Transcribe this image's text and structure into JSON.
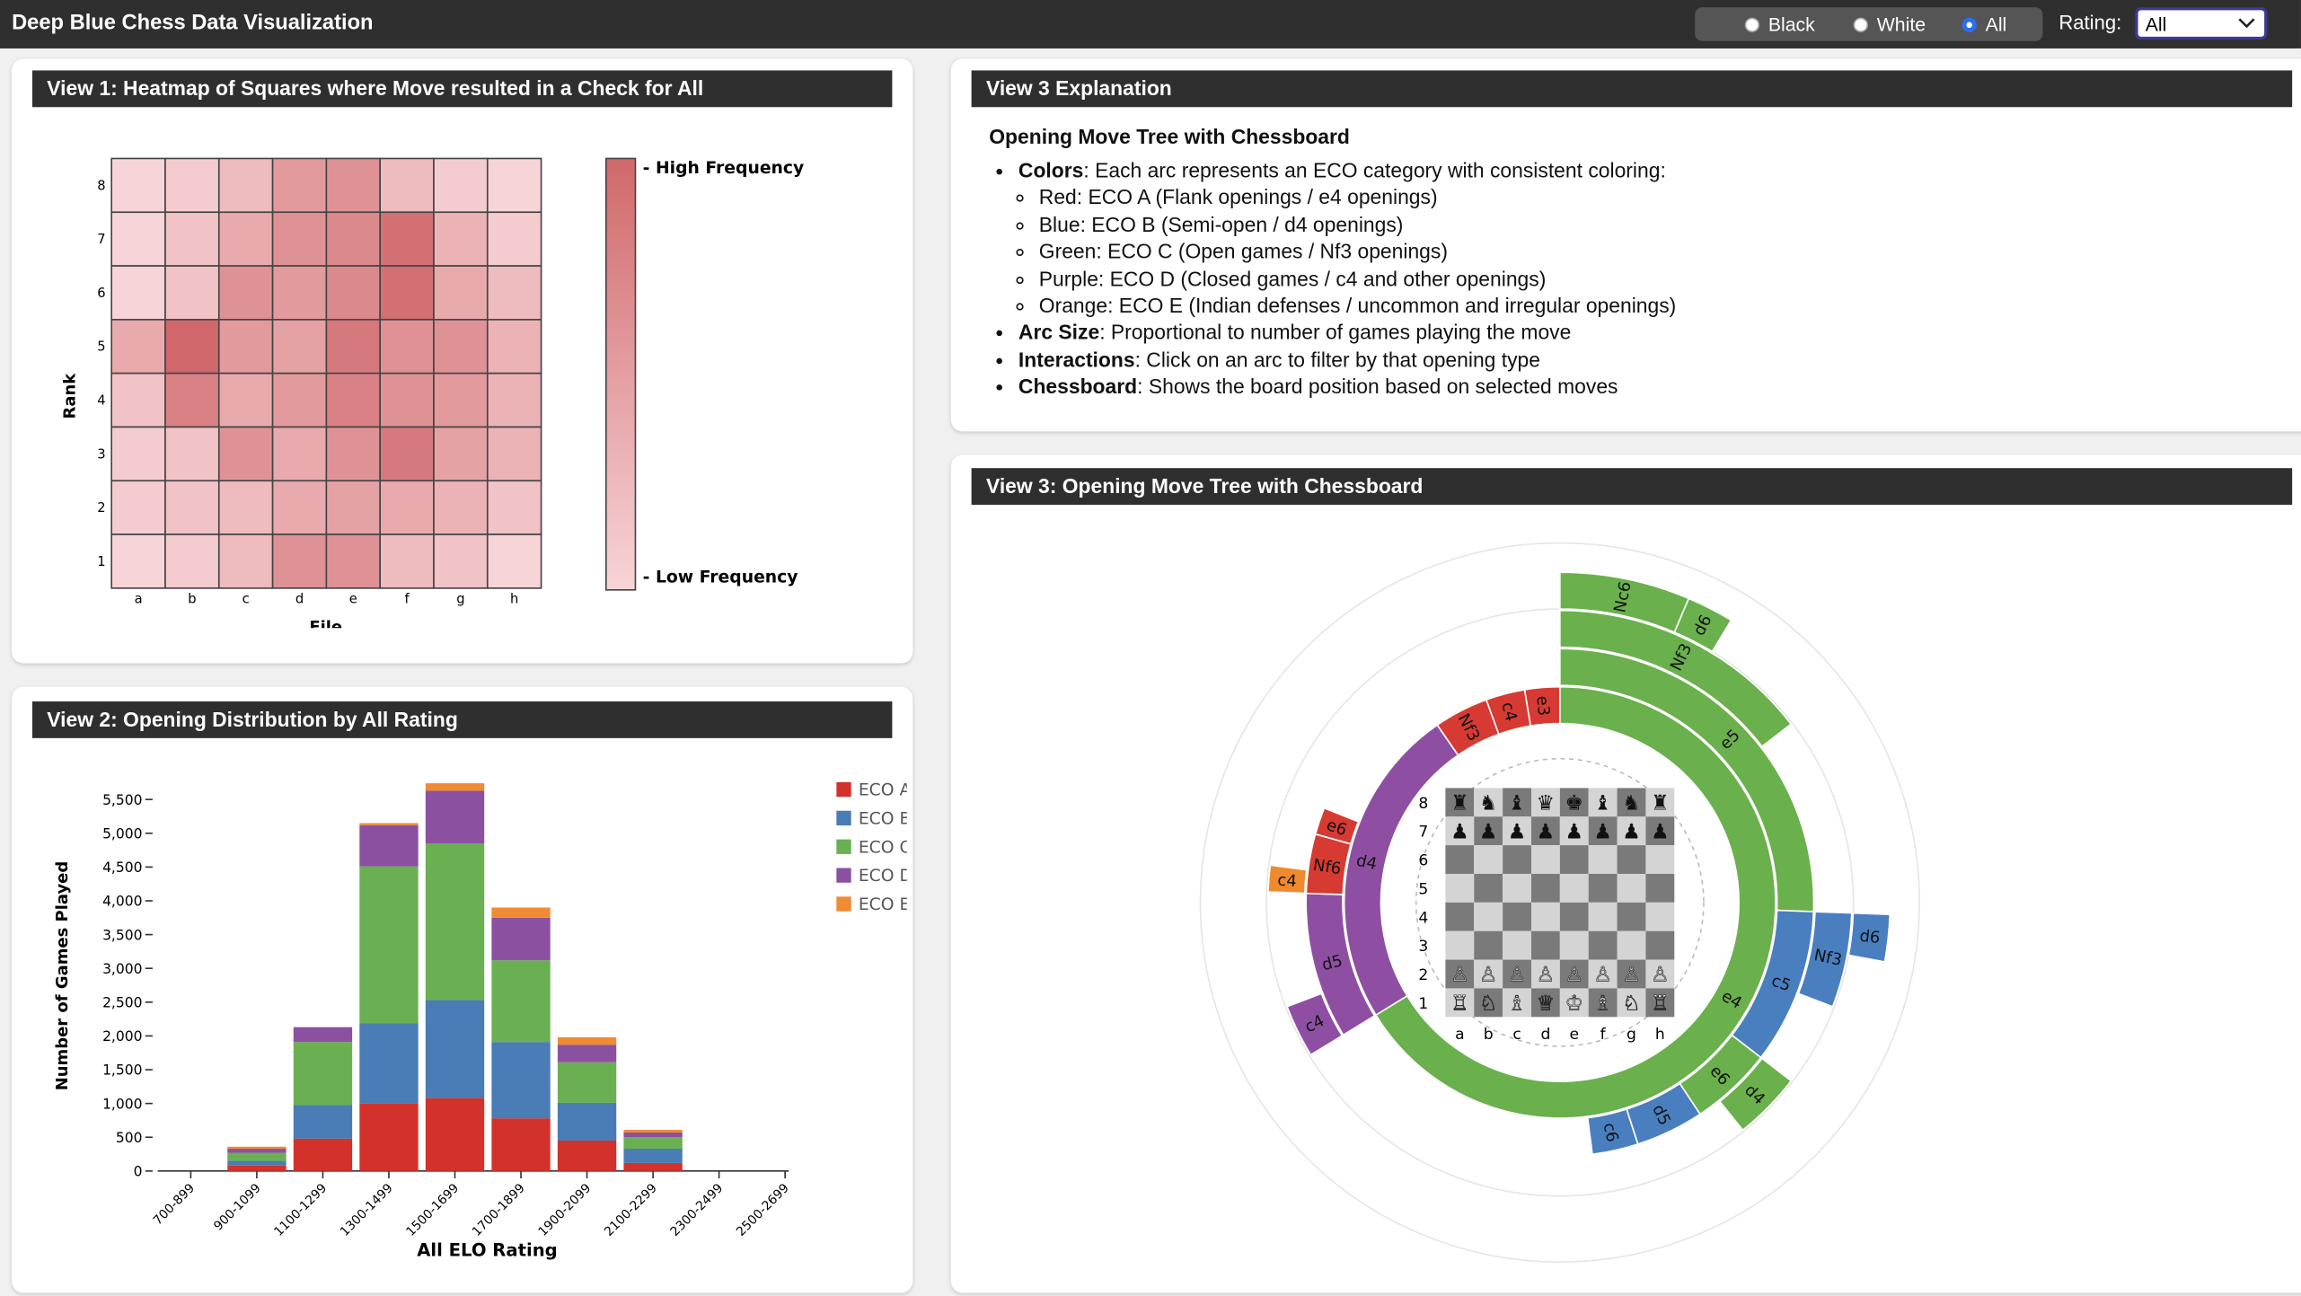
{
  "header": {
    "title": "Deep Blue Chess Data Visualization",
    "options": [
      "Black",
      "White",
      "All"
    ],
    "rating_label": "Rating:",
    "rating_value": "All"
  },
  "explanation": {
    "title": "View 3 Explanation",
    "heading": "Opening Move Tree with Chessboard",
    "items": [
      {
        "term": "Colors",
        "text": ": Each arc represents an ECO category with consistent coloring:",
        "subitems": [
          "Red: ECO A (Flank openings / e4 openings)",
          "Blue: ECO B (Semi-open / d4 openings)",
          "Green: ECO C (Open games / Nf3 openings)",
          "Purple: ECO D (Closed games / c4 and other openings)",
          "Orange: ECO E (Indian defenses / uncommon and irregular openings)"
        ]
      },
      {
        "term": "Arc Size",
        "text": ": Proportional to number of games playing the move"
      },
      {
        "term": "Interactions",
        "text": ": Click on an arc to filter by that opening type"
      },
      {
        "term": "Chessboard",
        "text": ": Shows the board position based on selected moves"
      }
    ]
  },
  "chart_data": [
    {
      "type": "heatmap",
      "title": "View 1: Heatmap of Squares where Move resulted in a Check for All",
      "x_label": "File",
      "y_label": "Rank",
      "x_categories": [
        "a",
        "b",
        "c",
        "d",
        "e",
        "f",
        "g",
        "h"
      ],
      "y_categories": [
        "8",
        "7",
        "6",
        "5",
        "4",
        "3",
        "2",
        "1"
      ],
      "values": [
        [
          0.2,
          0.25,
          0.35,
          0.55,
          0.6,
          0.35,
          0.25,
          0.2
        ],
        [
          0.2,
          0.3,
          0.45,
          0.6,
          0.65,
          0.8,
          0.4,
          0.25
        ],
        [
          0.2,
          0.3,
          0.6,
          0.55,
          0.65,
          0.8,
          0.45,
          0.35
        ],
        [
          0.45,
          0.85,
          0.55,
          0.5,
          0.75,
          0.6,
          0.6,
          0.4
        ],
        [
          0.3,
          0.7,
          0.45,
          0.55,
          0.7,
          0.6,
          0.55,
          0.4
        ],
        [
          0.25,
          0.3,
          0.6,
          0.45,
          0.6,
          0.75,
          0.5,
          0.4
        ],
        [
          0.25,
          0.3,
          0.35,
          0.45,
          0.5,
          0.45,
          0.4,
          0.3
        ],
        [
          0.2,
          0.25,
          0.35,
          0.6,
          0.6,
          0.35,
          0.3,
          0.2
        ]
      ],
      "colorscale": [
        "#f7d4d7",
        "#d0686b"
      ],
      "colorbar_labels": {
        "high": "- High Frequency",
        "low": "- Low Frequency"
      }
    },
    {
      "type": "bar",
      "stacked": true,
      "title": "View 2: Opening Distribution by All Rating",
      "x_label": "All ELO Rating",
      "y_label": "Number of Games Played",
      "categories": [
        "700-899",
        "900-1099",
        "1100-1299",
        "1300-1499",
        "1500-1699",
        "1700-1899",
        "1900-2099",
        "2100-2299",
        "2300-2499",
        "2500-2699"
      ],
      "series": [
        {
          "name": "ECO A",
          "color": "#d3312b",
          "values": [
            0,
            80,
            480,
            1000,
            1080,
            780,
            450,
            120,
            0,
            0
          ]
        },
        {
          "name": "ECO B",
          "color": "#4a7cb5",
          "values": [
            0,
            70,
            500,
            1190,
            1450,
            1130,
            560,
            210,
            0,
            0
          ]
        },
        {
          "name": "ECO C",
          "color": "#6aaf52",
          "values": [
            0,
            120,
            930,
            2320,
            2320,
            1210,
            600,
            170,
            0,
            0
          ]
        },
        {
          "name": "ECO D",
          "color": "#8b51a0",
          "values": [
            0,
            60,
            220,
            610,
            780,
            630,
            260,
            70,
            0,
            0
          ]
        },
        {
          "name": "ECO E",
          "color": "#f08a33",
          "values": [
            0,
            30,
            0,
            30,
            110,
            150,
            110,
            40,
            0,
            0
          ]
        }
      ],
      "ylim": [
        0,
        5800
      ],
      "yticks": [
        0,
        500,
        {
          "value": 1000,
          "label": "1,000"
        },
        {
          "value": 1500,
          "label": "1,500"
        },
        {
          "value": 2000,
          "label": "2,000"
        },
        {
          "value": 2500,
          "label": "2,500"
        },
        {
          "value": 3000,
          "label": "3,000"
        },
        {
          "value": 3500,
          "label": "3,500"
        },
        {
          "value": 4000,
          "label": "4,000"
        },
        {
          "value": 4500,
          "label": "4,500"
        },
        {
          "value": 5000,
          "label": "5,000"
        },
        {
          "value": 5500,
          "label": "5,500"
        }
      ]
    },
    {
      "type": "sunburst",
      "title": "View 3: Opening Move Tree with Chessboard",
      "nodes": [
        {
          "label": "e4",
          "value": 12670,
          "color": "#6ab04c",
          "children": [
            {
              "label": "e5",
              "value": 4890,
              "color": "#6ab04c",
              "children": [
                {
                  "label": "Nf3",
                  "value": 2780,
                  "color": "#6ab04c",
                  "children": [
                    {
                      "label": "Nc6",
                      "value": 1220,
                      "color": "#6ab04c"
                    },
                    {
                      "label": "d6",
                      "value": 440,
                      "color": "#6ab04c"
                    }
                  ]
                }
              ]
            },
            {
              "label": "c5",
              "value": 1890,
              "color": "#4a7fbf",
              "children": [
                {
                  "label": "Nf3",
                  "value": 1000,
                  "color": "#4a7fbf",
                  "children": [
                    {
                      "label": "d6",
                      "value": 440,
                      "color": "#4a7fbf"
                    }
                  ]
                }
              ]
            },
            {
              "label": "e6",
              "value": 1000,
              "color": "#6ab04c",
              "children": [
                {
                  "label": "d4",
                  "value": 720,
                  "color": "#6ab04c"
                }
              ]
            },
            {
              "label": "d5",
              "value": 830,
              "color": "#4a7fbf"
            },
            {
              "label": "c6",
              "value": 560,
              "color": "#4a7fbf"
            }
          ]
        },
        {
          "label": "d4",
          "value": 4610,
          "color": "#8e4fa3",
          "children": [
            {
              "label": "d5",
              "value": 1780,
              "color": "#8e4fa3",
              "children": [
                {
                  "label": "c4",
                  "value": 560,
                  "color": "#8e4fa3"
                }
              ]
            },
            {
              "label": "Nf6",
              "value": 720,
              "color": "#d63a32",
              "children": [
                {
                  "label": "c4",
                  "value": 280,
                  "color": "#ef8a2e"
                }
              ]
            },
            {
              "label": "e6",
              "value": 330,
              "color": "#d63a32"
            }
          ]
        },
        {
          "label": "Nf3",
          "value": 780,
          "color": "#d63a32"
        },
        {
          "label": "c4",
          "value": 560,
          "color": "#d63a32"
        },
        {
          "label": "e3",
          "value": 500,
          "color": "#d63a32"
        }
      ],
      "board": {
        "files": [
          "a",
          "b",
          "c",
          "d",
          "e",
          "f",
          "g",
          "h"
        ],
        "ranks": [
          "8",
          "7",
          "6",
          "5",
          "4",
          "3",
          "2",
          "1"
        ],
        "pieces": {
          "8": [
            "♜",
            "♞",
            "♝",
            "♛",
            "♚",
            "♝",
            "♞",
            "♜"
          ],
          "7": [
            "♟",
            "♟",
            "♟",
            "♟",
            "♟",
            "♟",
            "♟",
            "♟"
          ],
          "2": [
            "♙",
            "♙",
            "♙",
            "♙",
            "♙",
            "♙",
            "♙",
            "♙"
          ],
          "1": [
            "♖",
            "♘",
            "♗",
            "♕",
            "♔",
            "♗",
            "♘",
            "♖"
          ]
        }
      }
    }
  ]
}
